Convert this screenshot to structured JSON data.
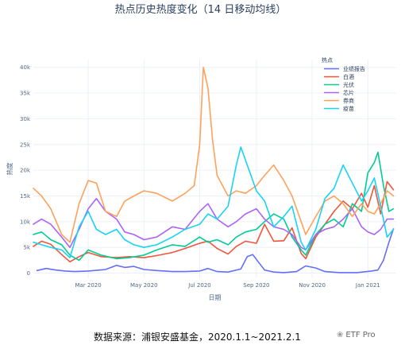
{
  "chart_data": {
    "type": "line",
    "title": "热点历史热度变化（14 日移动均线）",
    "xlabel": "日期",
    "ylabel": "热度",
    "x_range": [
      "2020-01-01",
      "2021-02-01"
    ],
    "x_ticks": [
      {
        "date": "2020-03-01",
        "label": "Mar 2020"
      },
      {
        "date": "2020-05-01",
        "label": "May 2020"
      },
      {
        "date": "2020-07-01",
        "label": "Jul 2020"
      },
      {
        "date": "2020-09-01",
        "label": "Sep 2020"
      },
      {
        "date": "2020-11-01",
        "label": "Nov 2020"
      },
      {
        "date": "2021-01-01",
        "label": "Jan 2021"
      }
    ],
    "y_range": [
      -1000,
      41500
    ],
    "y_ticks": [
      {
        "value": 0,
        "label": "0"
      },
      {
        "value": 5000,
        "label": "5k"
      },
      {
        "value": 10000,
        "label": "10k"
      },
      {
        "value": 15000,
        "label": "15k"
      },
      {
        "value": 20000,
        "label": "20k"
      },
      {
        "value": 25000,
        "label": "25k"
      },
      {
        "value": 30000,
        "label": "30k"
      },
      {
        "value": 35000,
        "label": "35k"
      },
      {
        "value": 40000,
        "label": "40k"
      }
    ],
    "grid": true,
    "legend_title": "热点",
    "legend_position": "top-right",
    "series": [
      {
        "name": "业绩报告",
        "color": "#636efa",
        "points": [
          [
            "2020-01-05",
            500
          ],
          [
            "2020-01-15",
            900
          ],
          [
            "2020-01-25",
            600
          ],
          [
            "2020-02-05",
            400
          ],
          [
            "2020-02-15",
            300
          ],
          [
            "2020-03-01",
            400
          ],
          [
            "2020-03-20",
            700
          ],
          [
            "2020-04-01",
            1500
          ],
          [
            "2020-04-10",
            1100
          ],
          [
            "2020-04-20",
            1300
          ],
          [
            "2020-05-01",
            700
          ],
          [
            "2020-05-15",
            500
          ],
          [
            "2020-06-01",
            300
          ],
          [
            "2020-06-15",
            300
          ],
          [
            "2020-07-01",
            400
          ],
          [
            "2020-07-10",
            900
          ],
          [
            "2020-07-20",
            300
          ],
          [
            "2020-08-01",
            200
          ],
          [
            "2020-08-15",
            800
          ],
          [
            "2020-08-22",
            3200
          ],
          [
            "2020-08-28",
            3600
          ],
          [
            "2020-09-03",
            2200
          ],
          [
            "2020-09-10",
            600
          ],
          [
            "2020-09-20",
            200
          ],
          [
            "2020-10-01",
            100
          ],
          [
            "2020-10-15",
            300
          ],
          [
            "2020-10-25",
            1400
          ],
          [
            "2020-11-05",
            1000
          ],
          [
            "2020-11-15",
            300
          ],
          [
            "2020-12-01",
            100
          ],
          [
            "2020-12-20",
            100
          ],
          [
            "2021-01-05",
            400
          ],
          [
            "2021-01-12",
            600
          ],
          [
            "2021-01-18",
            2500
          ],
          [
            "2021-01-24",
            6000
          ],
          [
            "2021-01-29",
            8600
          ]
        ]
      },
      {
        "name": "白酒",
        "color": "#ef553b",
        "points": [
          [
            "2020-01-01",
            5200
          ],
          [
            "2020-01-10",
            6200
          ],
          [
            "2020-01-20",
            5600
          ],
          [
            "2020-02-01",
            3600
          ],
          [
            "2020-02-10",
            2200
          ],
          [
            "2020-02-20",
            3200
          ],
          [
            "2020-03-01",
            4000
          ],
          [
            "2020-03-15",
            3200
          ],
          [
            "2020-04-01",
            3000
          ],
          [
            "2020-04-15",
            3200
          ],
          [
            "2020-05-01",
            3000
          ],
          [
            "2020-05-15",
            3400
          ],
          [
            "2020-06-01",
            4000
          ],
          [
            "2020-06-15",
            4800
          ],
          [
            "2020-07-01",
            5800
          ],
          [
            "2020-07-10",
            6200
          ],
          [
            "2020-07-20",
            4800
          ],
          [
            "2020-08-01",
            3700
          ],
          [
            "2020-08-10",
            5200
          ],
          [
            "2020-08-20",
            6200
          ],
          [
            "2020-09-01",
            5800
          ],
          [
            "2020-09-10",
            9500
          ],
          [
            "2020-09-20",
            6200
          ],
          [
            "2020-10-01",
            6300
          ],
          [
            "2020-10-10",
            8800
          ],
          [
            "2020-10-20",
            3800
          ],
          [
            "2020-10-25",
            2800
          ],
          [
            "2020-11-05",
            7000
          ],
          [
            "2020-11-15",
            9500
          ],
          [
            "2020-11-25",
            12000
          ],
          [
            "2020-12-05",
            14000
          ],
          [
            "2020-12-15",
            12500
          ],
          [
            "2020-12-25",
            15500
          ],
          [
            "2021-01-01",
            12800
          ],
          [
            "2021-01-08",
            17000
          ],
          [
            "2021-01-15",
            11500
          ],
          [
            "2021-01-22",
            17800
          ],
          [
            "2021-01-29",
            16200
          ]
        ]
      },
      {
        "name": "光伏",
        "color": "#00cc96",
        "points": [
          [
            "2020-01-01",
            7500
          ],
          [
            "2020-01-10",
            8000
          ],
          [
            "2020-01-20",
            6500
          ],
          [
            "2020-02-01",
            5500
          ],
          [
            "2020-02-10",
            3500
          ],
          [
            "2020-02-20",
            2500
          ],
          [
            "2020-03-01",
            4500
          ],
          [
            "2020-03-15",
            3500
          ],
          [
            "2020-04-01",
            2800
          ],
          [
            "2020-04-15",
            3000
          ],
          [
            "2020-05-01",
            3500
          ],
          [
            "2020-05-15",
            4500
          ],
          [
            "2020-06-01",
            5500
          ],
          [
            "2020-06-15",
            5200
          ],
          [
            "2020-07-01",
            7000
          ],
          [
            "2020-07-10",
            6000
          ],
          [
            "2020-07-20",
            6500
          ],
          [
            "2020-08-01",
            5500
          ],
          [
            "2020-08-10",
            7000
          ],
          [
            "2020-08-20",
            8000
          ],
          [
            "2020-09-01",
            8500
          ],
          [
            "2020-09-10",
            10000
          ],
          [
            "2020-09-20",
            11500
          ],
          [
            "2020-10-01",
            10500
          ],
          [
            "2020-10-10",
            7000
          ],
          [
            "2020-10-20",
            4500
          ],
          [
            "2020-10-25",
            3500
          ],
          [
            "2020-11-05",
            7500
          ],
          [
            "2020-11-15",
            9500
          ],
          [
            "2020-11-25",
            10500
          ],
          [
            "2020-12-05",
            9000
          ],
          [
            "2020-12-15",
            13500
          ],
          [
            "2020-12-25",
            12000
          ],
          [
            "2021-01-01",
            19500
          ],
          [
            "2021-01-08",
            21500
          ],
          [
            "2021-01-12",
            23500
          ],
          [
            "2021-01-18",
            17000
          ],
          [
            "2021-01-24",
            12000
          ],
          [
            "2021-01-29",
            12500
          ]
        ]
      },
      {
        "name": "芯片",
        "color": "#ab63fa",
        "points": [
          [
            "2020-01-01",
            9500
          ],
          [
            "2020-01-10",
            10500
          ],
          [
            "2020-01-20",
            9500
          ],
          [
            "2020-02-01",
            7000
          ],
          [
            "2020-02-10",
            5000
          ],
          [
            "2020-02-20",
            8500
          ],
          [
            "2020-03-01",
            12500
          ],
          [
            "2020-03-10",
            14500
          ],
          [
            "2020-03-20",
            12000
          ],
          [
            "2020-04-01",
            10500
          ],
          [
            "2020-04-10",
            8000
          ],
          [
            "2020-04-20",
            7500
          ],
          [
            "2020-05-01",
            6500
          ],
          [
            "2020-05-15",
            7000
          ],
          [
            "2020-06-01",
            9000
          ],
          [
            "2020-06-15",
            8500
          ],
          [
            "2020-07-01",
            12000
          ],
          [
            "2020-07-10",
            13500
          ],
          [
            "2020-07-20",
            10500
          ],
          [
            "2020-08-01",
            9000
          ],
          [
            "2020-08-10",
            10000
          ],
          [
            "2020-08-20",
            11500
          ],
          [
            "2020-09-01",
            12500
          ],
          [
            "2020-09-10",
            10500
          ],
          [
            "2020-09-20",
            9000
          ],
          [
            "2020-10-01",
            8500
          ],
          [
            "2020-10-10",
            7500
          ],
          [
            "2020-10-20",
            5000
          ],
          [
            "2020-10-25",
            4500
          ],
          [
            "2020-11-05",
            7500
          ],
          [
            "2020-11-15",
            8500
          ],
          [
            "2020-11-25",
            9000
          ],
          [
            "2020-12-05",
            10500
          ],
          [
            "2020-12-15",
            12500
          ],
          [
            "2020-12-25",
            9000
          ],
          [
            "2021-01-01",
            8000
          ],
          [
            "2021-01-08",
            7500
          ],
          [
            "2021-01-15",
            8500
          ],
          [
            "2021-01-22",
            10500
          ],
          [
            "2021-01-29",
            10500
          ]
        ]
      },
      {
        "name": "券商",
        "color": "#ffa15a",
        "points": [
          [
            "2020-01-01",
            16500
          ],
          [
            "2020-01-10",
            15000
          ],
          [
            "2020-01-20",
            12500
          ],
          [
            "2020-02-01",
            7500
          ],
          [
            "2020-02-10",
            6000
          ],
          [
            "2020-02-20",
            13500
          ],
          [
            "2020-03-01",
            18000
          ],
          [
            "2020-03-10",
            17500
          ],
          [
            "2020-03-20",
            12000
          ],
          [
            "2020-04-01",
            11000
          ],
          [
            "2020-04-10",
            14000
          ],
          [
            "2020-04-20",
            15000
          ],
          [
            "2020-05-01",
            16000
          ],
          [
            "2020-05-15",
            15500
          ],
          [
            "2020-06-01",
            14000
          ],
          [
            "2020-06-15",
            15500
          ],
          [
            "2020-06-25",
            17000
          ],
          [
            "2020-07-01",
            25000
          ],
          [
            "2020-07-05",
            40000
          ],
          [
            "2020-07-10",
            36000
          ],
          [
            "2020-07-15",
            26000
          ],
          [
            "2020-07-20",
            19000
          ],
          [
            "2020-08-01",
            15000
          ],
          [
            "2020-08-10",
            16000
          ],
          [
            "2020-08-20",
            15500
          ],
          [
            "2020-09-01",
            17000
          ],
          [
            "2020-09-10",
            19000
          ],
          [
            "2020-09-20",
            21000
          ],
          [
            "2020-10-01",
            18000
          ],
          [
            "2020-10-10",
            15000
          ],
          [
            "2020-10-20",
            10000
          ],
          [
            "2020-10-25",
            7500
          ],
          [
            "2020-11-05",
            11000
          ],
          [
            "2020-11-15",
            14000
          ],
          [
            "2020-11-25",
            15000
          ],
          [
            "2020-12-05",
            13500
          ],
          [
            "2020-12-15",
            11000
          ],
          [
            "2020-12-25",
            13500
          ],
          [
            "2021-01-01",
            12000
          ],
          [
            "2021-01-08",
            11500
          ],
          [
            "2021-01-15",
            13500
          ],
          [
            "2021-01-22",
            16000
          ],
          [
            "2021-01-29",
            15000
          ]
        ]
      },
      {
        "name": "疫苗",
        "color": "#19d3f3",
        "points": [
          [
            "2020-01-01",
            6000
          ],
          [
            "2020-01-10",
            5500
          ],
          [
            "2020-01-20",
            5000
          ],
          [
            "2020-02-01",
            4500
          ],
          [
            "2020-02-10",
            3000
          ],
          [
            "2020-02-20",
            9000
          ],
          [
            "2020-03-01",
            12000
          ],
          [
            "2020-03-10",
            8500
          ],
          [
            "2020-03-20",
            7500
          ],
          [
            "2020-04-01",
            8500
          ],
          [
            "2020-04-10",
            6500
          ],
          [
            "2020-04-20",
            5500
          ],
          [
            "2020-05-01",
            5000
          ],
          [
            "2020-05-15",
            5500
          ],
          [
            "2020-06-01",
            7000
          ],
          [
            "2020-06-15",
            8500
          ],
          [
            "2020-07-01",
            9500
          ],
          [
            "2020-07-10",
            11500
          ],
          [
            "2020-07-20",
            10500
          ],
          [
            "2020-08-01",
            13000
          ],
          [
            "2020-08-10",
            21000
          ],
          [
            "2020-08-15",
            24500
          ],
          [
            "2020-08-20",
            22000
          ],
          [
            "2020-09-01",
            16000
          ],
          [
            "2020-09-10",
            14000
          ],
          [
            "2020-09-20",
            9000
          ],
          [
            "2020-10-01",
            11000
          ],
          [
            "2020-10-10",
            13000
          ],
          [
            "2020-10-20",
            6000
          ],
          [
            "2020-10-25",
            4500
          ],
          [
            "2020-11-05",
            8500
          ],
          [
            "2020-11-15",
            14500
          ],
          [
            "2020-11-25",
            16500
          ],
          [
            "2020-12-05",
            21000
          ],
          [
            "2020-12-15",
            17500
          ],
          [
            "2020-12-25",
            14000
          ],
          [
            "2021-01-01",
            16000
          ],
          [
            "2021-01-08",
            18500
          ],
          [
            "2021-01-15",
            13000
          ],
          [
            "2021-01-22",
            7000
          ],
          [
            "2021-01-29",
            8500
          ]
        ]
      }
    ]
  },
  "footer": {
    "source": "数据来源：浦银安盛基金，2020.1.1~2021.2.1",
    "watermark": "ETF Pro",
    "watermark_icon": "wechat-icon"
  }
}
